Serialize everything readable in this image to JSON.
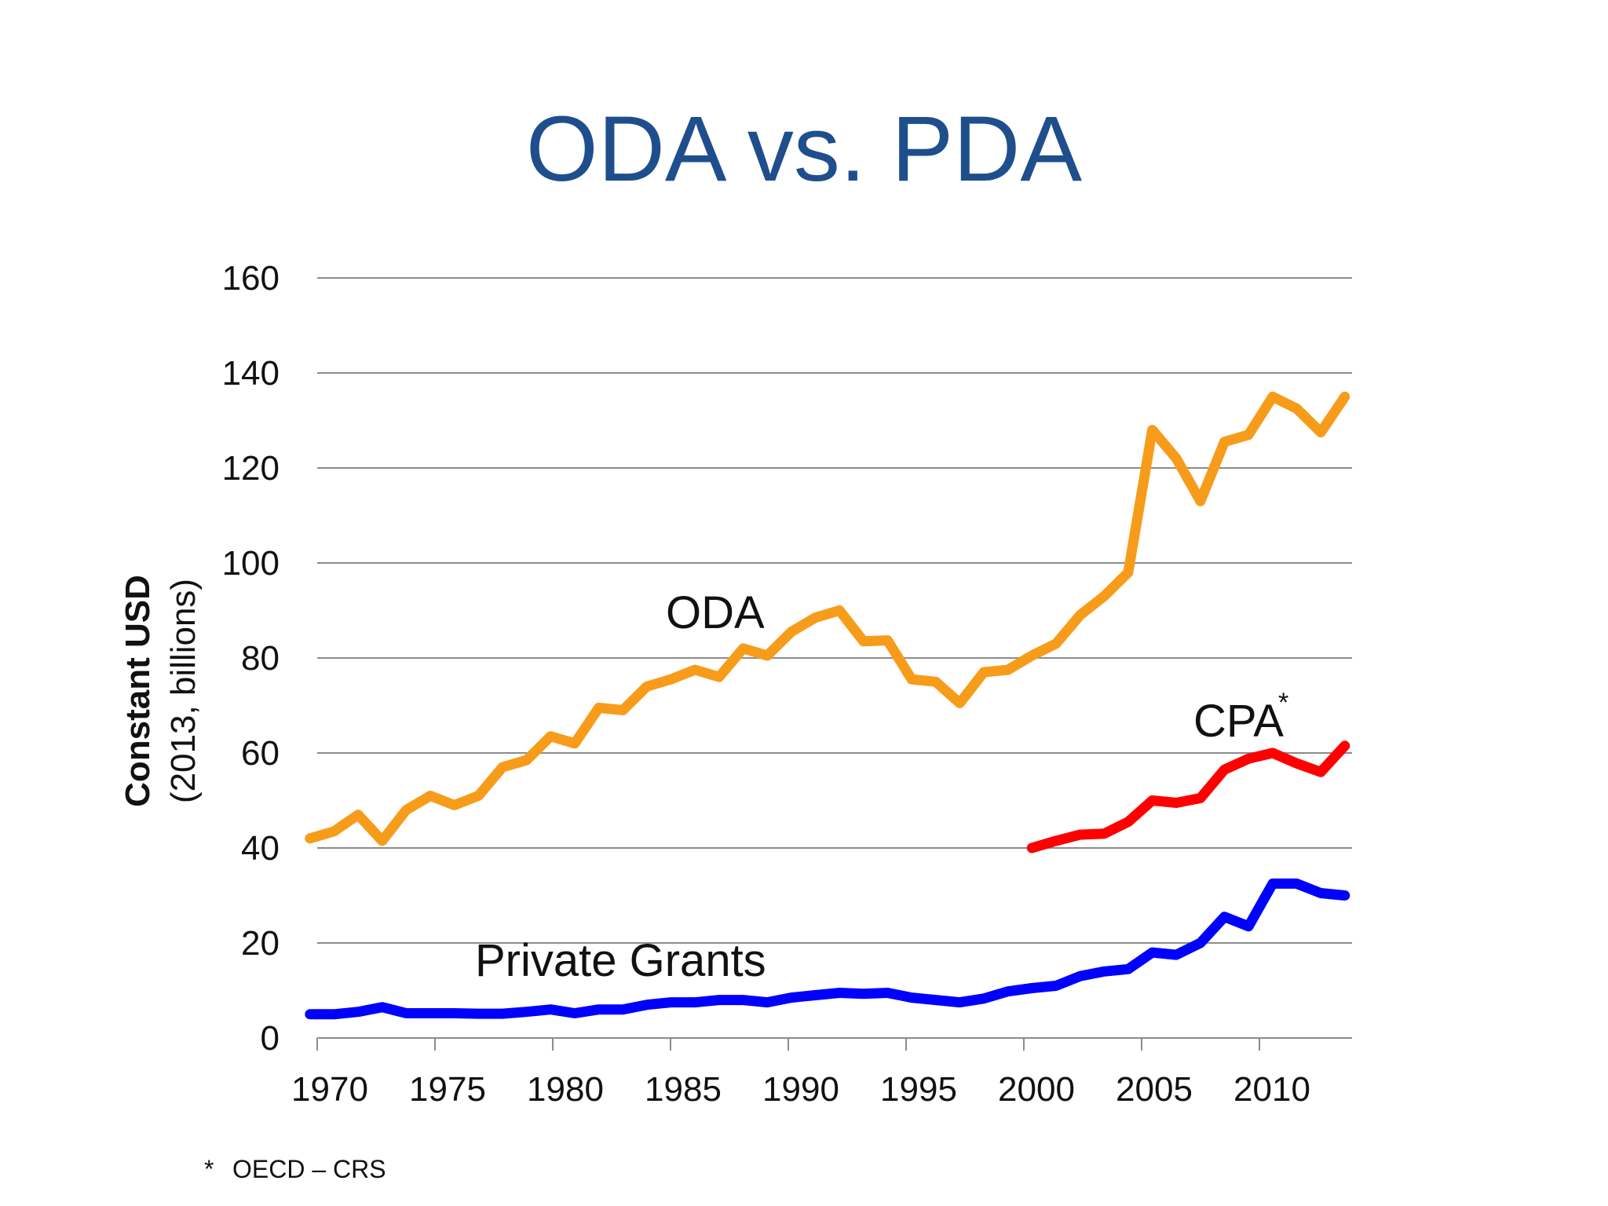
{
  "slide": {
    "title": "ODA vs. PDA",
    "footnote_marker": "*",
    "footnote_text": "OECD – CRS"
  },
  "chart_data": {
    "type": "line",
    "title": "",
    "ylabel_main": "Constant USD",
    "ylabel_sub": "(2013, billions)",
    "xlabel": "",
    "xlim": [
      1970,
      2013
    ],
    "ylim": [
      0,
      160
    ],
    "x_ticks": [
      1970,
      1975,
      1980,
      1985,
      1990,
      1995,
      2000,
      2005,
      2010
    ],
    "y_ticks": [
      0,
      20,
      40,
      60,
      80,
      100,
      120,
      140,
      160
    ],
    "grid": true,
    "series": [
      {
        "name": "ODA",
        "color": "#f79c1a",
        "x": [
          1970,
          1971,
          1972,
          1973,
          1974,
          1975,
          1976,
          1977,
          1978,
          1979,
          1980,
          1981,
          1982,
          1983,
          1984,
          1985,
          1986,
          1987,
          1988,
          1989,
          1990,
          1991,
          1992,
          1993,
          1994,
          1995,
          1996,
          1997,
          1998,
          1999,
          2000,
          2001,
          2002,
          2003,
          2004,
          2005,
          2006,
          2007,
          2008,
          2009,
          2010,
          2011,
          2012,
          2013
        ],
        "values": [
          42,
          43.5,
          47,
          41.5,
          48,
          51,
          49,
          51,
          57,
          58.5,
          63.5,
          62,
          69.5,
          69,
          74,
          75.5,
          77.5,
          76,
          82,
          80.5,
          85.5,
          88.5,
          90,
          83.5,
          83.7,
          75.5,
          75,
          70.5,
          77,
          77.5,
          80.5,
          83,
          89,
          93,
          98,
          128,
          122,
          113,
          125.5,
          127,
          135,
          132.5,
          127.5,
          135
        ]
      },
      {
        "name": "CPA",
        "label_suffix": "*",
        "color": "#ff0000",
        "x": [
          2000,
          2001,
          2002,
          2003,
          2004,
          2005,
          2006,
          2007,
          2008,
          2009,
          2010,
          2011,
          2012,
          2013
        ],
        "values": [
          40,
          41.5,
          42.8,
          43,
          45.5,
          50,
          49.5,
          50.5,
          56.5,
          58.8,
          60,
          57.8,
          56,
          61.5
        ]
      },
      {
        "name": "Private Grants",
        "color": "#0000ff",
        "x": [
          1970,
          1971,
          1972,
          1973,
          1974,
          1975,
          1976,
          1977,
          1978,
          1979,
          1980,
          1981,
          1982,
          1983,
          1984,
          1985,
          1986,
          1987,
          1988,
          1989,
          1990,
          1991,
          1992,
          1993,
          1994,
          1995,
          1996,
          1997,
          1998,
          1999,
          2000,
          2001,
          2002,
          2003,
          2004,
          2005,
          2006,
          2007,
          2008,
          2009,
          2010,
          2011,
          2012,
          2013
        ],
        "values": [
          5,
          5,
          5.5,
          6.5,
          5.2,
          5.2,
          5.2,
          5.1,
          5.1,
          5.5,
          6,
          5.2,
          6,
          6,
          7,
          7.5,
          7.5,
          8,
          8,
          7.5,
          8.5,
          9,
          9.5,
          9.3,
          9.5,
          8.5,
          8,
          7.5,
          8.3,
          9.8,
          10.5,
          11,
          13,
          14,
          14.5,
          18,
          17.5,
          20,
          25.5,
          23.5,
          32.5,
          32.5,
          30.5,
          30
        ]
      }
    ]
  }
}
